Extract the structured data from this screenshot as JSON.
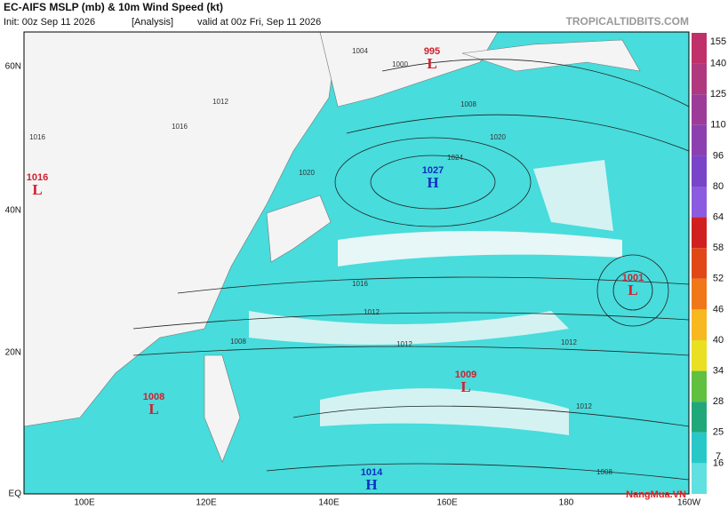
{
  "header": {
    "title": "EC-AIFS MSLP (mb) & 10m Wind Speed (kt)",
    "init": "Init: 00z Sep 11 2026",
    "run": "[Analysis]",
    "valid": "valid at 00z Fri, Sep 11 2026",
    "site": "TROPICALTIDBITS.COM"
  },
  "colorbar": {
    "ticks": [
      155,
      140,
      125,
      110,
      96,
      80,
      64,
      58,
      52,
      46,
      40,
      34,
      28,
      25,
      16,
      7
    ],
    "colors": [
      "#c0306a",
      "#b0387e",
      "#9c3c98",
      "#8c40b0",
      "#7a44c8",
      "#8c5ce0",
      "#d02020",
      "#e04818",
      "#f07818",
      "#f8b820",
      "#e8e020",
      "#60c040",
      "#20a878",
      "#28c8c8",
      "#60e0e0"
    ]
  },
  "axes": {
    "lat_labels": [
      "60N",
      "40N",
      "20N",
      "EQ"
    ],
    "lon_labels": [
      "100E",
      "120E",
      "140E",
      "160E",
      "180",
      "160W"
    ]
  },
  "centers": [
    {
      "kind": "L",
      "pressure": "995"
    },
    {
      "kind": "H",
      "pressure": "1027"
    },
    {
      "kind": "L",
      "pressure": "1016"
    },
    {
      "kind": "L",
      "pressure": "1001"
    },
    {
      "kind": "L",
      "pressure": "1009"
    },
    {
      "kind": "L",
      "pressure": "1008"
    },
    {
      "kind": "H",
      "pressure": "1014"
    }
  ],
  "isobar_labels": [
    "1004",
    "1000",
    "1008",
    "1012",
    "1016",
    "1020",
    "1024",
    "1016",
    "1020",
    "1016",
    "1012",
    "1012",
    "1008",
    "1012",
    "1012",
    "1008"
  ],
  "watermark": "NangMua.VN"
}
